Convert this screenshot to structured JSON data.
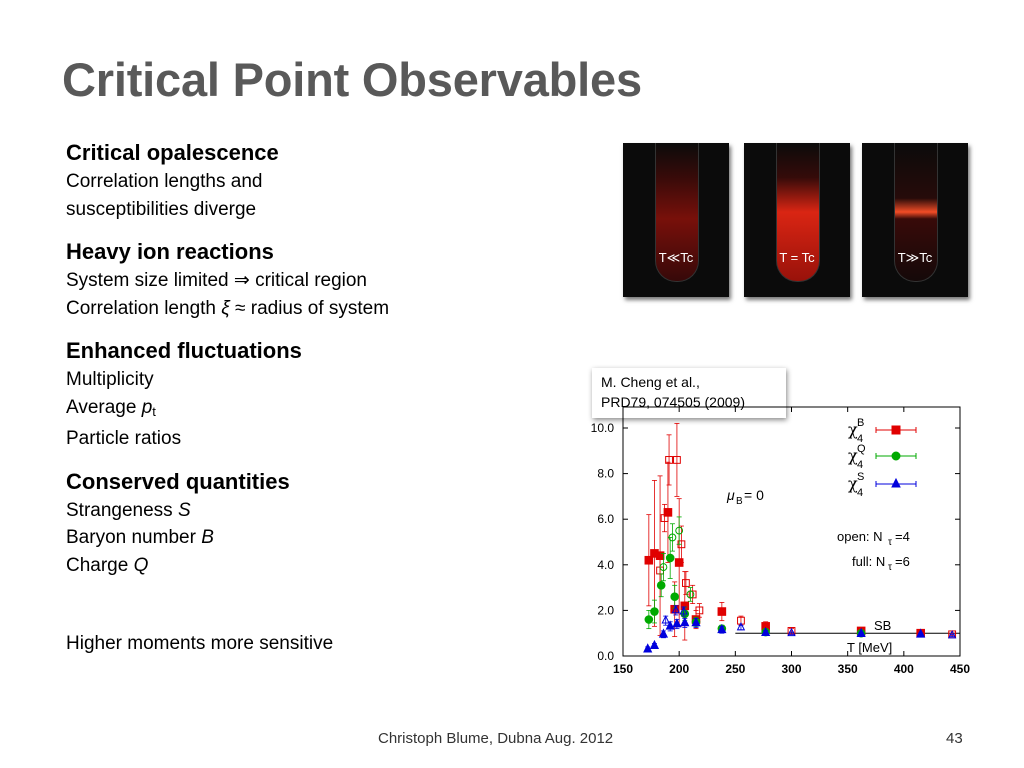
{
  "slide": {
    "title": "Critical Point Observables"
  },
  "sections": [
    {
      "title": "Critical opalescence",
      "lines": [
        {
          "parts": [
            {
              "t": "Correlation lengths and"
            }
          ]
        },
        {
          "parts": [
            {
              "t": "susceptibilities diverge"
            }
          ]
        }
      ]
    },
    {
      "title": "Heavy ion reactions",
      "lines": [
        {
          "parts": [
            {
              "t": "System size limited ⇒ critical region"
            }
          ]
        },
        {
          "parts": [
            {
              "t": "Correlation length "
            },
            {
              "t": "ξ",
              "i": true
            },
            {
              "t": " ≈ radius of system"
            }
          ]
        }
      ]
    },
    {
      "title": "Enhanced fluctuations",
      "lines": [
        {
          "parts": [
            {
              "t": "Multiplicity"
            }
          ]
        },
        {
          "parts": [
            {
              "t": "Average "
            },
            {
              "t": "p",
              "i": true
            },
            {
              "t": "t",
              "sub": true
            }
          ]
        },
        {
          "parts": [
            {
              "t": "Particle ratios"
            }
          ]
        }
      ]
    },
    {
      "title": "Conserved quantities",
      "lines": [
        {
          "parts": [
            {
              "t": "Strangeness "
            },
            {
              "t": "S",
              "i": true
            }
          ]
        },
        {
          "parts": [
            {
              "t": "Baryon number "
            },
            {
              "t": "B",
              "i": true
            }
          ]
        },
        {
          "parts": [
            {
              "t": "Charge "
            },
            {
              "t": "Q",
              "i": true
            }
          ]
        }
      ]
    }
  ],
  "final_line": "Higher moments more sensitive",
  "photos": [
    {
      "label": "T≪Tc",
      "glow": "glow1"
    },
    {
      "label": "T = Tc",
      "glow": "glow2"
    },
    {
      "label": "T≫Tc",
      "glow": "glow3"
    }
  ],
  "citation": {
    "line1": "M. Cheng et al.,",
    "line2": "PRD79, 074505 (2009)"
  },
  "chart_data": {
    "type": "scatter",
    "xlim": [
      150,
      450
    ],
    "ylim": [
      0,
      10
    ],
    "xticks": [
      "150",
      "200",
      "250",
      "300",
      "350",
      "400",
      "450"
    ],
    "yticks": [
      "0.0",
      "2.0",
      "4.0",
      "6.0",
      "8.0",
      "10.0"
    ],
    "xlabel": "T [MeV]",
    "colors": {
      "B": "#e00000",
      "Q": "#00aa00",
      "S": "#0000dd",
      "SB": "#000000"
    },
    "annotations": {
      "mu_main": "μ",
      "mu_sub": "B",
      "mu_rest": " = 0",
      "open_text": "open: N",
      "open_sub": "τ",
      "open_rest": "=4",
      "full_text": "full: N",
      "full_sub": "τ",
      "full_rest": "=6",
      "sb_label": "SB"
    },
    "legend_position": "top-right",
    "legend": [
      {
        "sym": "χ",
        "sup": "B",
        "sub": "4",
        "key": "B",
        "marker": "square"
      },
      {
        "sym": "χ",
        "sup": "Q",
        "sub": "4",
        "key": "Q",
        "marker": "circle"
      },
      {
        "sym": "χ",
        "sup": "S",
        "sub": "4",
        "key": "S",
        "marker": "triangle"
      }
    ],
    "sb_line": {
      "y": 1.0,
      "x_from": 250,
      "x_to": 450
    },
    "series": [
      {
        "key": "B",
        "filled": true,
        "marker": "square",
        "points": [
          [
            173,
            4.2,
            2.0
          ],
          [
            178,
            4.5,
            3.2
          ],
          [
            183,
            4.4,
            3.5
          ],
          [
            190,
            6.3,
            2.2
          ],
          [
            196,
            2.05,
            1.2
          ],
          [
            200,
            4.1,
            2.8
          ],
          [
            205,
            2.2,
            1.5
          ],
          [
            215,
            1.6,
            0.4
          ],
          [
            238,
            1.95,
            0.4
          ],
          [
            277,
            1.3,
            0.2
          ],
          [
            362,
            1.1,
            0.1
          ],
          [
            415,
            1.0,
            0.05
          ]
        ]
      },
      {
        "key": "B",
        "filled": false,
        "marker": "square",
        "points": [
          [
            183,
            3.75,
            0.6
          ],
          [
            187,
            6.05,
            0.6
          ],
          [
            191,
            8.6,
            1.1
          ],
          [
            198,
            8.6,
            1.6
          ],
          [
            202,
            4.9,
            0.8
          ],
          [
            206,
            3.2,
            0.5
          ],
          [
            212,
            2.7,
            0.4
          ],
          [
            218,
            2.0,
            0.3
          ],
          [
            255,
            1.55,
            0.2
          ],
          [
            300,
            1.1,
            0.1
          ],
          [
            362,
            1.05,
            0.05
          ],
          [
            443,
            0.95,
            0.05
          ]
        ]
      },
      {
        "key": "Q",
        "filled": true,
        "marker": "circle",
        "points": [
          [
            173,
            1.6,
            0.4
          ],
          [
            178,
            1.95,
            0.5
          ],
          [
            184,
            3.1,
            0.5
          ],
          [
            192,
            4.3,
            0.9
          ],
          [
            196,
            2.6,
            0.5
          ],
          [
            205,
            1.85,
            0.3
          ],
          [
            215,
            1.5,
            0.2
          ],
          [
            238,
            1.2,
            0.15
          ],
          [
            277,
            1.05,
            0.1
          ],
          [
            362,
            1.0,
            0.05
          ]
        ]
      },
      {
        "key": "Q",
        "filled": false,
        "marker": "circle",
        "points": [
          [
            186,
            3.9,
            0.6
          ],
          [
            194,
            5.2,
            0.6
          ],
          [
            200,
            5.5,
            0.6
          ],
          [
            210,
            2.7,
            0.3
          ]
        ]
      },
      {
        "key": "S",
        "filled": true,
        "marker": "triangle",
        "points": [
          [
            172,
            0.3,
            0.1
          ],
          [
            178,
            0.45,
            0.1
          ],
          [
            186,
            0.95,
            0.15
          ],
          [
            192,
            1.3,
            0.2
          ],
          [
            198,
            1.4,
            0.2
          ],
          [
            205,
            1.45,
            0.2
          ],
          [
            215,
            1.45,
            0.2
          ],
          [
            238,
            1.15,
            0.15
          ],
          [
            277,
            1.02,
            0.1
          ],
          [
            362,
            0.98,
            0.05
          ],
          [
            415,
            0.95,
            0.05
          ]
        ]
      },
      {
        "key": "S",
        "filled": false,
        "marker": "triangle",
        "points": [
          [
            188,
            1.55,
            0.2
          ],
          [
            197,
            2.0,
            0.2
          ],
          [
            204,
            1.95,
            0.2
          ],
          [
            255,
            1.25,
            0.1
          ],
          [
            300,
            1.0,
            0.05
          ],
          [
            443,
            0.9,
            0.05
          ]
        ]
      }
    ]
  },
  "footer": {
    "text": "Christoph Blume, Dubna Aug. 2012",
    "page": "43"
  }
}
